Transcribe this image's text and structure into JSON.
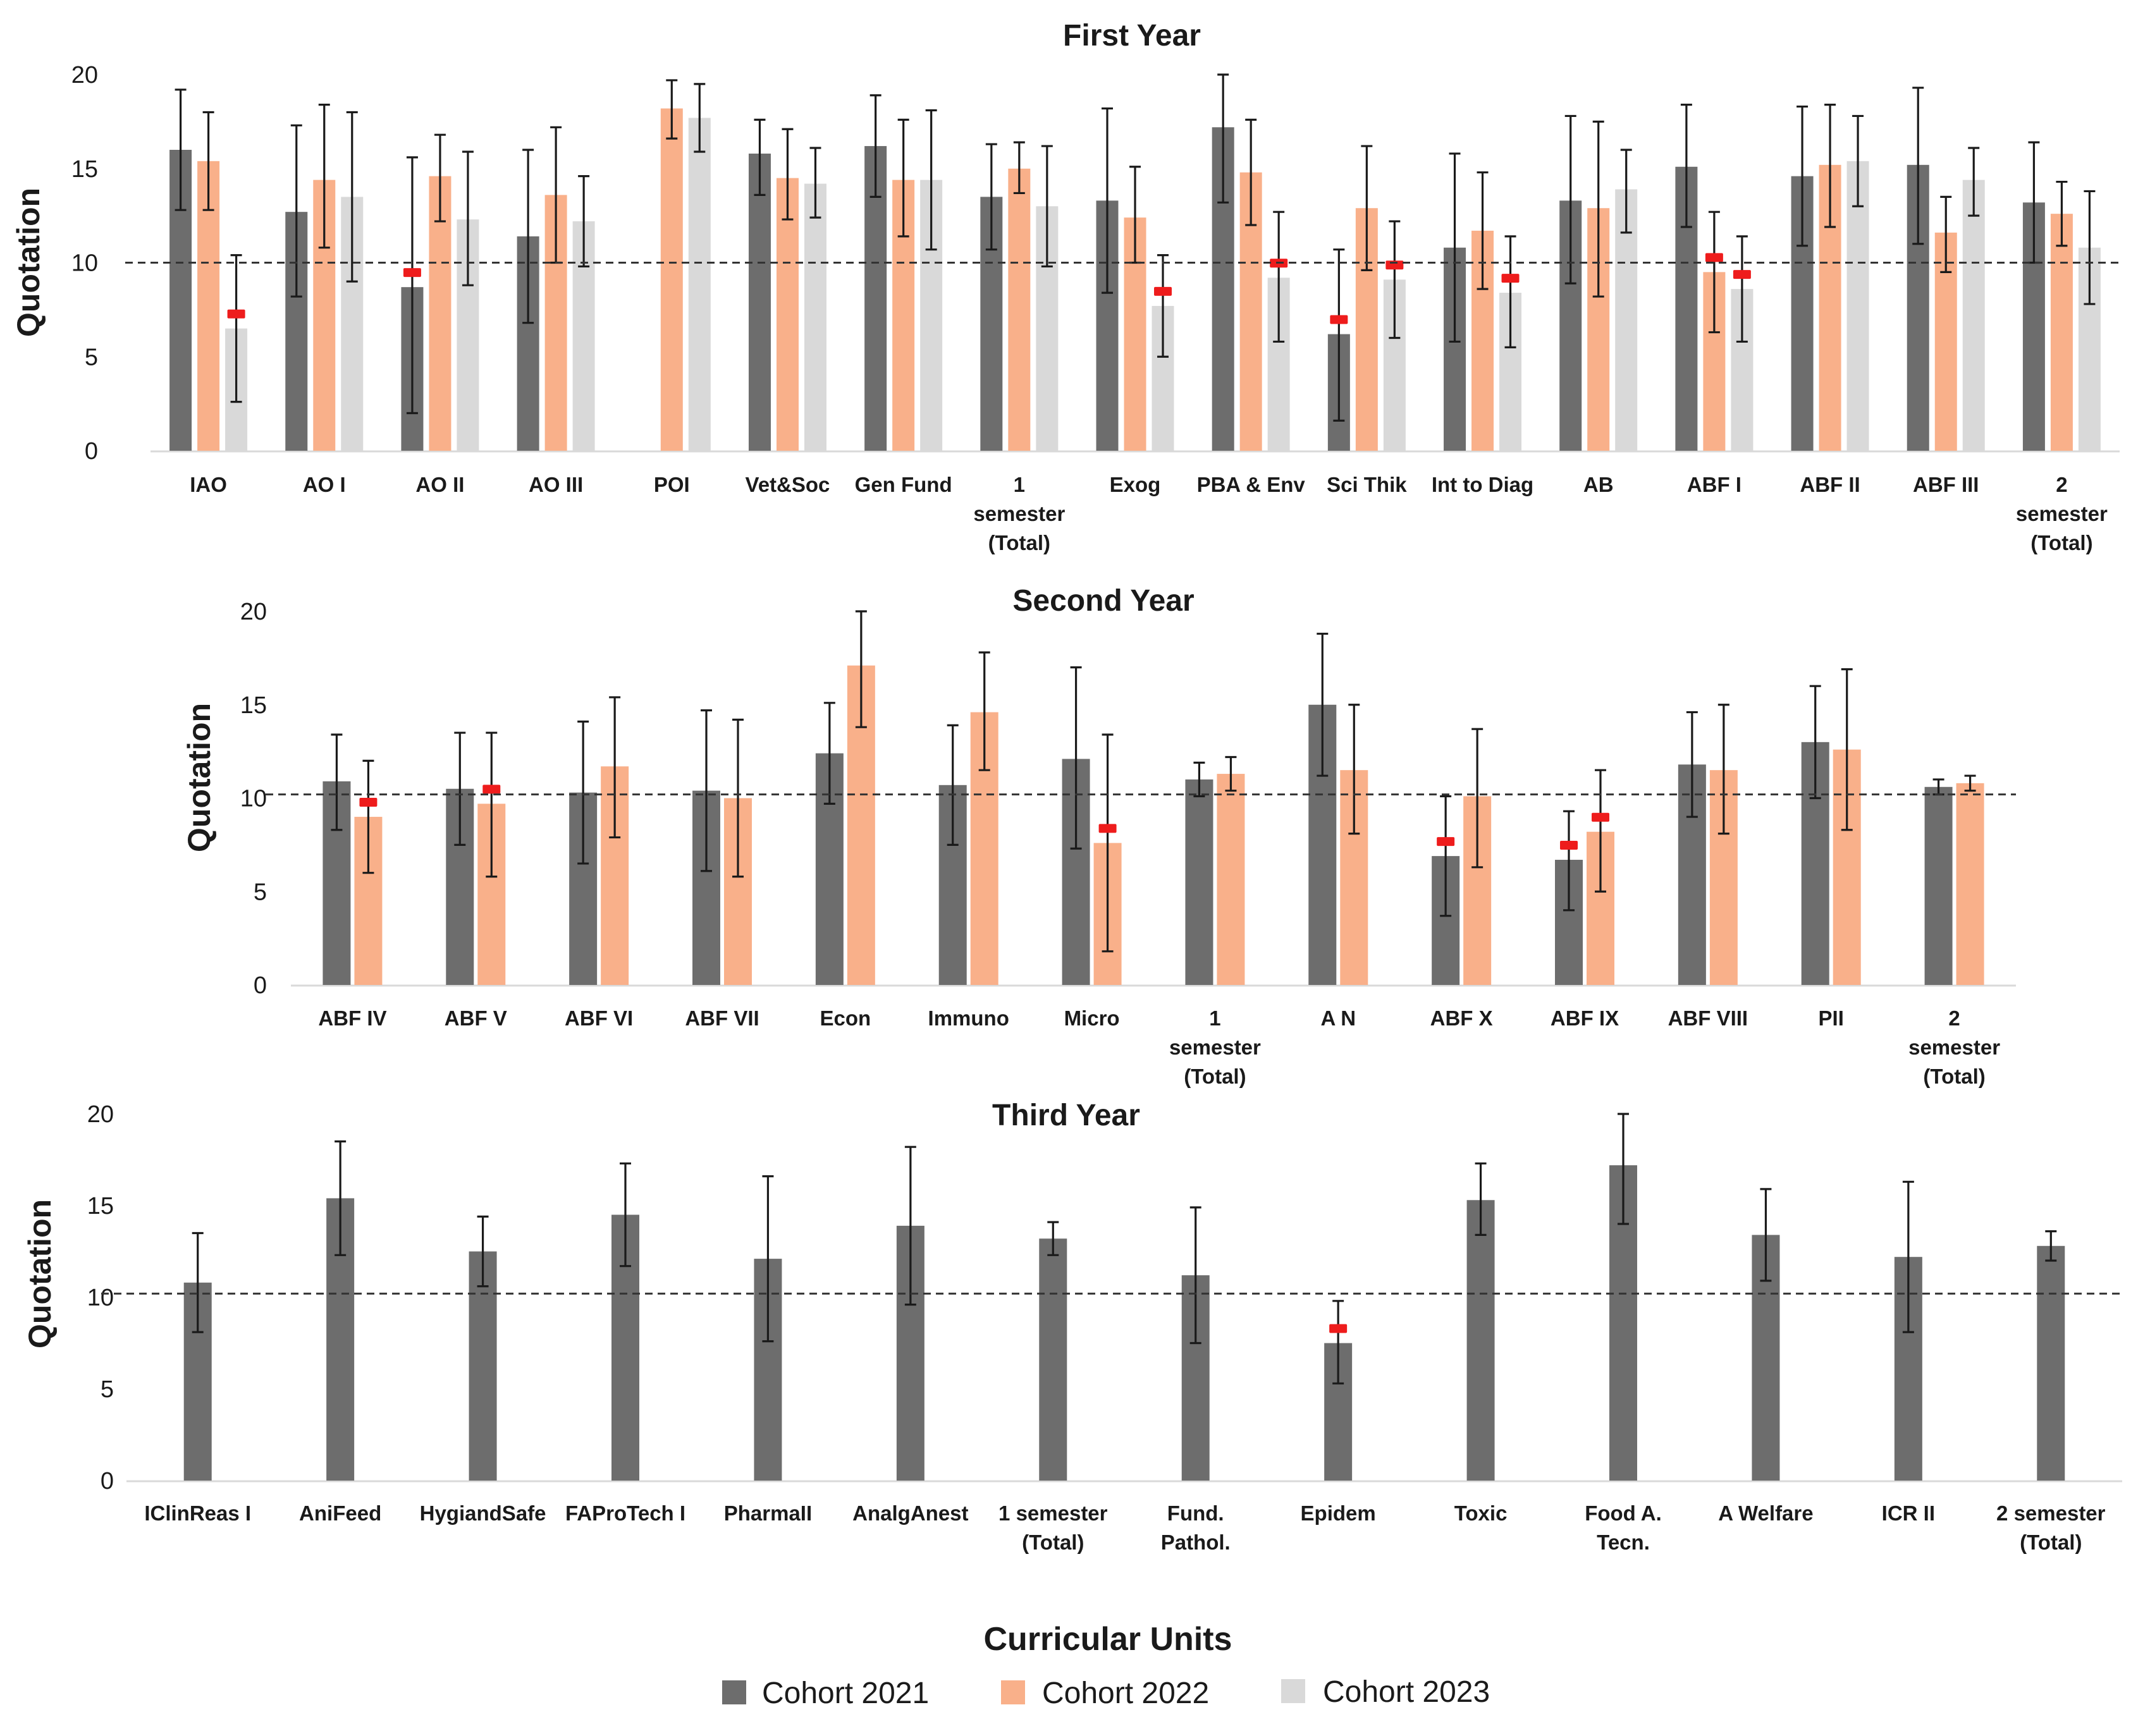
{
  "colors": {
    "cohort_2021": "#6d6d6d",
    "cohort_2022": "#f9b08a",
    "cohort_2023": "#d9d9d9",
    "marker": "#ee1c1c",
    "reference_line": "#333333"
  },
  "x_axis_title": "Curricular Units",
  "legend": [
    {
      "label": "Cohort 2021",
      "key": "cohort_2021"
    },
    {
      "label": "Cohort 2022",
      "key": "cohort_2022"
    },
    {
      "label": "Cohort 2023",
      "key": "cohort_2023"
    }
  ],
  "chart_data": [
    {
      "type": "bar",
      "title": "First Year",
      "ylabel": "Quotation",
      "ylim": [
        0,
        20
      ],
      "yticks": [
        0,
        5,
        10,
        15,
        20
      ],
      "reference_line": 10,
      "categories": [
        "IAO",
        "AO I",
        "AO II",
        "AO III",
        "POI",
        "Vet&Soc",
        "Gen Fund",
        "1 semester (Total)",
        "Exog",
        "PBA & Env",
        "Sci Thik",
        "Int to Diag",
        "AB",
        "ABF I",
        "ABF II",
        "ABF III",
        "2 semester (Total)"
      ],
      "series": [
        {
          "name": "Cohort 2021",
          "values": [
            16.0,
            12.7,
            8.7,
            11.4,
            null,
            15.8,
            16.2,
            13.5,
            13.3,
            17.2,
            6.2,
            10.8,
            13.3,
            15.1,
            14.6,
            15.2,
            13.2
          ],
          "err_low": [
            12.8,
            8.2,
            2.0,
            6.8,
            null,
            13.6,
            13.5,
            10.7,
            8.4,
            13.2,
            1.6,
            5.8,
            8.9,
            11.9,
            10.9,
            11.0,
            10.0
          ],
          "err_high": [
            19.2,
            17.3,
            15.6,
            16.0,
            null,
            17.6,
            18.9,
            16.3,
            18.2,
            20.0,
            10.7,
            15.8,
            17.8,
            18.4,
            18.3,
            19.3,
            16.4
          ],
          "markers": [
            false,
            false,
            true,
            false,
            false,
            false,
            false,
            false,
            false,
            false,
            true,
            false,
            false,
            false,
            false,
            false,
            false
          ]
        },
        {
          "name": "Cohort 2022",
          "values": [
            15.4,
            14.4,
            14.6,
            13.6,
            18.2,
            14.5,
            14.4,
            15.0,
            12.4,
            14.8,
            12.9,
            11.7,
            12.9,
            9.5,
            15.2,
            11.6,
            12.6
          ],
          "err_low": [
            12.8,
            10.8,
            12.2,
            10.0,
            16.6,
            12.3,
            11.4,
            13.7,
            10.0,
            12.0,
            9.6,
            8.6,
            8.2,
            6.3,
            11.9,
            9.5,
            10.9
          ],
          "err_high": [
            18.0,
            18.4,
            16.8,
            17.2,
            19.7,
            17.1,
            17.6,
            16.4,
            15.1,
            17.6,
            16.2,
            14.8,
            17.5,
            12.7,
            18.4,
            13.5,
            14.3
          ],
          "markers": [
            false,
            false,
            false,
            false,
            false,
            false,
            false,
            false,
            false,
            false,
            false,
            false,
            false,
            true,
            false,
            false,
            false
          ]
        },
        {
          "name": "Cohort 2023",
          "values": [
            6.5,
            13.5,
            12.3,
            12.2,
            17.7,
            14.2,
            14.4,
            13.0,
            7.7,
            9.2,
            9.1,
            8.4,
            13.9,
            8.6,
            15.4,
            14.4,
            10.8
          ],
          "err_low": [
            2.6,
            9.0,
            8.8,
            9.8,
            15.9,
            12.4,
            10.7,
            9.8,
            5.0,
            5.8,
            6.0,
            5.5,
            11.6,
            5.8,
            13.0,
            12.5,
            7.8
          ],
          "err_high": [
            10.4,
            18.0,
            15.9,
            14.6,
            19.5,
            16.1,
            18.1,
            16.2,
            10.4,
            12.7,
            12.2,
            11.4,
            16.0,
            11.4,
            17.8,
            16.1,
            13.8
          ],
          "markers": [
            true,
            false,
            false,
            false,
            false,
            false,
            false,
            false,
            true,
            true,
            true,
            true,
            false,
            true,
            false,
            false,
            false
          ]
        }
      ]
    },
    {
      "type": "bar",
      "title": "Second Year",
      "ylabel": "Quotation",
      "ylim": [
        0,
        20
      ],
      "yticks": [
        0,
        5,
        10,
        15,
        20
      ],
      "reference_line": 10.2,
      "categories": [
        "ABF IV",
        "ABF V",
        "ABF VI",
        "ABF VII",
        "Econ",
        "Immuno",
        "Micro",
        "1 semester (Total)",
        "A N",
        "ABF X",
        "ABF IX",
        "ABF VIII",
        "PII",
        "2 semester (Total)"
      ],
      "series": [
        {
          "name": "Cohort 2021",
          "values": [
            10.9,
            10.5,
            10.3,
            10.4,
            12.4,
            10.7,
            12.1,
            11.0,
            15.0,
            6.9,
            6.7,
            11.8,
            13.0,
            10.6
          ],
          "err_low": [
            8.3,
            7.5,
            6.5,
            6.1,
            9.7,
            7.5,
            7.3,
            10.1,
            11.2,
            3.7,
            4.0,
            9.0,
            10.0,
            10.2
          ],
          "err_high": [
            13.4,
            13.5,
            14.1,
            14.7,
            15.1,
            13.9,
            17.0,
            11.9,
            18.8,
            10.1,
            9.3,
            14.6,
            16.0,
            11.0
          ],
          "markers": [
            false,
            false,
            false,
            false,
            false,
            false,
            false,
            false,
            false,
            true,
            true,
            false,
            false,
            false
          ]
        },
        {
          "name": "Cohort 2022",
          "values": [
            9.0,
            9.7,
            11.7,
            10.0,
            17.1,
            14.6,
            7.6,
            11.3,
            11.5,
            10.1,
            8.2,
            11.5,
            12.6,
            10.8
          ],
          "err_low": [
            6.0,
            5.8,
            7.9,
            5.8,
            13.8,
            11.5,
            1.8,
            10.4,
            8.1,
            6.3,
            5.0,
            8.1,
            8.3,
            10.4
          ],
          "err_high": [
            12.0,
            13.5,
            15.4,
            14.2,
            20.0,
            17.8,
            13.4,
            12.2,
            15.0,
            13.7,
            11.5,
            15.0,
            16.9,
            11.2
          ],
          "markers": [
            true,
            true,
            false,
            false,
            false,
            false,
            true,
            false,
            false,
            false,
            true,
            false,
            false,
            false
          ]
        }
      ]
    },
    {
      "type": "bar",
      "title": "Third Year",
      "ylabel": "Quotation",
      "ylim": [
        0,
        20
      ],
      "yticks": [
        0,
        5,
        10,
        15,
        20
      ],
      "reference_line": 10.2,
      "categories": [
        "IClinReas I",
        "AniFeed",
        "HygiandSafe",
        "FAProTech I",
        "PharmaII",
        "AnalgAnest",
        "1 semester (Total)",
        "Fund. Pathol.",
        "Epidem",
        "Toxic",
        "Food A. Tecn.",
        "A Welfare",
        "ICR II",
        "2 semester (Total)"
      ],
      "series": [
        {
          "name": "Cohort 2021",
          "values": [
            10.8,
            15.4,
            12.5,
            14.5,
            12.1,
            13.9,
            13.2,
            11.2,
            7.5,
            15.3,
            17.2,
            13.4,
            12.2,
            12.8
          ],
          "err_low": [
            8.1,
            12.3,
            10.6,
            11.7,
            7.6,
            9.6,
            12.3,
            7.5,
            5.3,
            13.4,
            14.0,
            10.9,
            8.1,
            12.0
          ],
          "err_high": [
            13.5,
            18.5,
            14.4,
            17.3,
            16.6,
            18.2,
            14.1,
            14.9,
            9.8,
            17.3,
            20.0,
            15.9,
            16.3,
            13.6
          ],
          "markers": [
            false,
            false,
            false,
            false,
            false,
            false,
            false,
            false,
            true,
            false,
            false,
            false,
            false,
            false
          ]
        }
      ]
    }
  ]
}
